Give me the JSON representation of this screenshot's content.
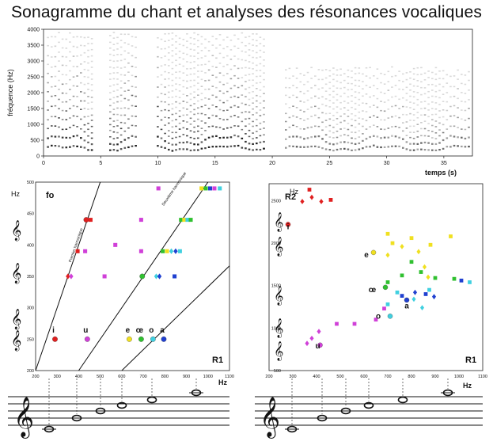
{
  "title": "Sonagramme du chant et analyses des résonances vocaliques",
  "chart_data": [
    {
      "type": "heatmap",
      "name": "spectrogram",
      "ylabel": "fréquence (Hz)",
      "xlabel": "temps (s)",
      "xlim": [
        0,
        37.5
      ],
      "ylim": [
        0,
        4000
      ],
      "xticks": [
        0,
        5,
        10,
        15,
        20,
        25,
        30,
        35
      ],
      "yticks": [
        0,
        500,
        1000,
        1500,
        2000,
        2500,
        3000,
        3500,
        4000
      ],
      "f0_hz": 250
    },
    {
      "type": "scatter",
      "name": "fo-vs-R1",
      "ylabel": "Hz",
      "corner_label": "fo",
      "axis_name": "R1",
      "xlabel": "Hz",
      "xlim": [
        200,
        1100
      ],
      "ylim": [
        200,
        500
      ],
      "xticks": [
        200,
        300,
        400,
        500,
        600,
        700,
        800,
        900,
        1000,
        1100
      ],
      "yticks": [
        200,
        250,
        300,
        350,
        400,
        450,
        500
      ],
      "harmonic_labels": [
        "Premier harmonique",
        "Deuxième harmonique"
      ],
      "vowel_labels": [
        {
          "v": "i",
          "x": 290,
          "y": 262
        },
        {
          "v": "u",
          "x": 440,
          "y": 262
        },
        {
          "v": "e",
          "x": 635,
          "y": 262
        },
        {
          "v": "œ",
          "x": 690,
          "y": 262
        },
        {
          "v": "o",
          "x": 745,
          "y": 262
        },
        {
          "v": "a",
          "x": 795,
          "y": 262
        }
      ],
      "points": [
        {
          "x": 290,
          "y": 250,
          "color": "#e02020",
          "shape": "circle"
        },
        {
          "x": 440,
          "y": 250,
          "color": "#d040d8",
          "shape": "circle"
        },
        {
          "x": 635,
          "y": 250,
          "color": "#f0e020",
          "shape": "circle"
        },
        {
          "x": 690,
          "y": 250,
          "color": "#30c030",
          "shape": "circle"
        },
        {
          "x": 745,
          "y": 250,
          "color": "#40d0e0",
          "shape": "circle"
        },
        {
          "x": 795,
          "y": 250,
          "color": "#2040d0",
          "shape": "circle"
        },
        {
          "x": 350,
          "y": 350,
          "color": "#e02020",
          "shape": "diamond"
        },
        {
          "x": 365,
          "y": 350,
          "color": "#d040d8",
          "shape": "diamond"
        },
        {
          "x": 395,
          "y": 390,
          "color": "#e02020",
          "shape": "square"
        },
        {
          "x": 435,
          "y": 440,
          "color": "#e02020",
          "shape": "circle"
        },
        {
          "x": 455,
          "y": 440,
          "color": "#e02020",
          "shape": "square"
        },
        {
          "x": 430,
          "y": 390,
          "color": "#d040d8",
          "shape": "square"
        },
        {
          "x": 520,
          "y": 350,
          "color": "#d040d8",
          "shape": "square"
        },
        {
          "x": 570,
          "y": 400,
          "color": "#d040d8",
          "shape": "square"
        },
        {
          "x": 690,
          "y": 390,
          "color": "#d040d8",
          "shape": "square"
        },
        {
          "x": 690,
          "y": 440,
          "color": "#d040d8",
          "shape": "square"
        },
        {
          "x": 770,
          "y": 490,
          "color": "#d040d8",
          "shape": "square"
        },
        {
          "x": 695,
          "y": 350,
          "color": "#30c030",
          "shape": "circle"
        },
        {
          "x": 760,
          "y": 350,
          "color": "#40d0e0",
          "shape": "diamond"
        },
        {
          "x": 775,
          "y": 350,
          "color": "#2040d0",
          "shape": "diamond"
        },
        {
          "x": 845,
          "y": 350,
          "color": "#2040d0",
          "shape": "square"
        },
        {
          "x": 790,
          "y": 390,
          "color": "#30c030",
          "shape": "square"
        },
        {
          "x": 810,
          "y": 390,
          "color": "#f0e020",
          "shape": "square"
        },
        {
          "x": 830,
          "y": 390,
          "color": "#40d0e0",
          "shape": "diamond"
        },
        {
          "x": 850,
          "y": 390,
          "color": "#2040d0",
          "shape": "diamond"
        },
        {
          "x": 870,
          "y": 390,
          "color": "#40d0e0",
          "shape": "square"
        },
        {
          "x": 875,
          "y": 440,
          "color": "#30c030",
          "shape": "square"
        },
        {
          "x": 890,
          "y": 440,
          "color": "#f0e020",
          "shape": "square"
        },
        {
          "x": 905,
          "y": 440,
          "color": "#40d0e0",
          "shape": "square"
        },
        {
          "x": 920,
          "y": 440,
          "color": "#30c030",
          "shape": "square"
        },
        {
          "x": 970,
          "y": 490,
          "color": "#f0e020",
          "shape": "square"
        },
        {
          "x": 990,
          "y": 490,
          "color": "#30c030",
          "shape": "square"
        },
        {
          "x": 1010,
          "y": 490,
          "color": "#2040d0",
          "shape": "square"
        },
        {
          "x": 1030,
          "y": 490,
          "color": "#d040d8",
          "shape": "square"
        },
        {
          "x": 1055,
          "y": 490,
          "color": "#40d0e0",
          "shape": "square"
        }
      ]
    },
    {
      "type": "scatter",
      "name": "R2-vs-R1",
      "ylabel": "Hz",
      "corner_label": "R2",
      "axis_name": "R1",
      "xlabel": "Hz",
      "xlim": [
        200,
        1100
      ],
      "ylim": [
        500,
        2700
      ],
      "xticks": [
        200,
        300,
        400,
        500,
        600,
        700,
        800,
        900,
        1000,
        1100
      ],
      "yticks": [
        500,
        1000,
        1500,
        2000,
        2500
      ],
      "vowel_labels": [
        {
          "v": "i",
          "x": 300,
          "y": 2200
        },
        {
          "v": "u",
          "x": 425,
          "y": 800
        },
        {
          "v": "e",
          "x": 630,
          "y": 1870
        },
        {
          "v": "œ",
          "x": 655,
          "y": 1460
        },
        {
          "v": "o",
          "x": 680,
          "y": 1150
        },
        {
          "v": "a",
          "x": 800,
          "y": 1270
        }
      ],
      "points": [
        {
          "x": 280,
          "y": 2220,
          "color": "#e02020",
          "shape": "circle"
        },
        {
          "x": 340,
          "y": 2490,
          "color": "#e02020",
          "shape": "diamond"
        },
        {
          "x": 370,
          "y": 2630,
          "color": "#e02020",
          "shape": "square"
        },
        {
          "x": 380,
          "y": 2540,
          "color": "#e02020",
          "shape": "diamond"
        },
        {
          "x": 420,
          "y": 2490,
          "color": "#e02020",
          "shape": "diamond"
        },
        {
          "x": 460,
          "y": 2510,
          "color": "#e02020",
          "shape": "square"
        },
        {
          "x": 415,
          "y": 800,
          "color": "#d040d8",
          "shape": "circle"
        },
        {
          "x": 360,
          "y": 820,
          "color": "#d040d8",
          "shape": "diamond"
        },
        {
          "x": 380,
          "y": 880,
          "color": "#d040d8",
          "shape": "diamond"
        },
        {
          "x": 410,
          "y": 960,
          "color": "#d040d8",
          "shape": "diamond"
        },
        {
          "x": 485,
          "y": 1050,
          "color": "#d040d8",
          "shape": "square"
        },
        {
          "x": 560,
          "y": 1050,
          "color": "#d040d8",
          "shape": "square"
        },
        {
          "x": 650,
          "y": 1100,
          "color": "#d040d8",
          "shape": "square"
        },
        {
          "x": 685,
          "y": 1230,
          "color": "#d040d8",
          "shape": "square"
        },
        {
          "x": 640,
          "y": 1890,
          "color": "#f0e020",
          "shape": "circle"
        },
        {
          "x": 700,
          "y": 2110,
          "color": "#f0e020",
          "shape": "square"
        },
        {
          "x": 700,
          "y": 1860,
          "color": "#f0e020",
          "shape": "diamond"
        },
        {
          "x": 720,
          "y": 2000,
          "color": "#f0e020",
          "shape": "square"
        },
        {
          "x": 760,
          "y": 1960,
          "color": "#f0e020",
          "shape": "diamond"
        },
        {
          "x": 800,
          "y": 2060,
          "color": "#f0e020",
          "shape": "square"
        },
        {
          "x": 830,
          "y": 1900,
          "color": "#f0e020",
          "shape": "diamond"
        },
        {
          "x": 855,
          "y": 1720,
          "color": "#f0e020",
          "shape": "diamond"
        },
        {
          "x": 880,
          "y": 1980,
          "color": "#f0e020",
          "shape": "square"
        },
        {
          "x": 870,
          "y": 1600,
          "color": "#f0e020",
          "shape": "diamond"
        },
        {
          "x": 965,
          "y": 2080,
          "color": "#f0e020",
          "shape": "square"
        },
        {
          "x": 690,
          "y": 1480,
          "color": "#30c030",
          "shape": "circle"
        },
        {
          "x": 700,
          "y": 1540,
          "color": "#30c030",
          "shape": "square"
        },
        {
          "x": 760,
          "y": 1620,
          "color": "#30c030",
          "shape": "square"
        },
        {
          "x": 800,
          "y": 1780,
          "color": "#30c030",
          "shape": "square"
        },
        {
          "x": 840,
          "y": 1660,
          "color": "#30c030",
          "shape": "square"
        },
        {
          "x": 900,
          "y": 1590,
          "color": "#30c030",
          "shape": "square"
        },
        {
          "x": 980,
          "y": 1580,
          "color": "#30c030",
          "shape": "square"
        },
        {
          "x": 710,
          "y": 1140,
          "color": "#40d0e0",
          "shape": "circle"
        },
        {
          "x": 700,
          "y": 1280,
          "color": "#40d0e0",
          "shape": "square"
        },
        {
          "x": 740,
          "y": 1420,
          "color": "#40d0e0",
          "shape": "square"
        },
        {
          "x": 810,
          "y": 1340,
          "color": "#40d0e0",
          "shape": "diamond"
        },
        {
          "x": 845,
          "y": 1240,
          "color": "#40d0e0",
          "shape": "diamond"
        },
        {
          "x": 875,
          "y": 1450,
          "color": "#40d0e0",
          "shape": "square"
        },
        {
          "x": 1045,
          "y": 1540,
          "color": "#40d0e0",
          "shape": "square"
        },
        {
          "x": 780,
          "y": 1330,
          "color": "#2040d0",
          "shape": "circle"
        },
        {
          "x": 760,
          "y": 1380,
          "color": "#2040d0",
          "shape": "square"
        },
        {
          "x": 815,
          "y": 1420,
          "color": "#2040d0",
          "shape": "diamond"
        },
        {
          "x": 860,
          "y": 1400,
          "color": "#2040d0",
          "shape": "square"
        },
        {
          "x": 895,
          "y": 1370,
          "color": "#2040d0",
          "shape": "diamond"
        },
        {
          "x": 1010,
          "y": 1560,
          "color": "#2040d0",
          "shape": "square"
        }
      ]
    }
  ]
}
